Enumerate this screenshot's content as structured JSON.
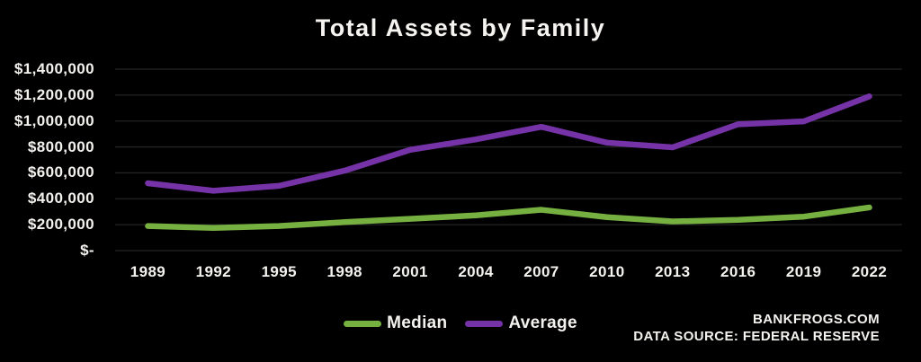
{
  "chart_data": {
    "type": "line",
    "title": "Total Assets by Family",
    "categories": [
      "1989",
      "1992",
      "1995",
      "1998",
      "2001",
      "2004",
      "2007",
      "2010",
      "2013",
      "2016",
      "2019",
      "2022"
    ],
    "series": [
      {
        "name": "Median",
        "color": "#76b041",
        "values": [
          190000,
          175000,
          190000,
          220000,
          245000,
          272000,
          315000,
          258000,
          225000,
          237000,
          262000,
          333000
        ]
      },
      {
        "name": "Average",
        "color": "#7633a8",
        "values": [
          520000,
          462000,
          500000,
          617000,
          778000,
          858000,
          955000,
          833000,
          797000,
          975000,
          997000,
          1190000
        ]
      }
    ],
    "y_axis": {
      "min": 0,
      "max": 1400000,
      "tick_step": 200000,
      "tick_labels": [
        "$-",
        "$200,000",
        "$400,000",
        "$600,000",
        "$800,000",
        "$1,000,000",
        "$1,200,000",
        "$1,400,000"
      ]
    },
    "xlabel": "",
    "ylabel": "",
    "grid": true,
    "legend_position": "bottom",
    "colors": {
      "background": "#000000",
      "gridline": "#232323",
      "text": "#f4f2ee"
    }
  },
  "footer": {
    "site": "BANKFROGS.COM",
    "source": "DATA SOURCE: FEDERAL RESERVE"
  }
}
